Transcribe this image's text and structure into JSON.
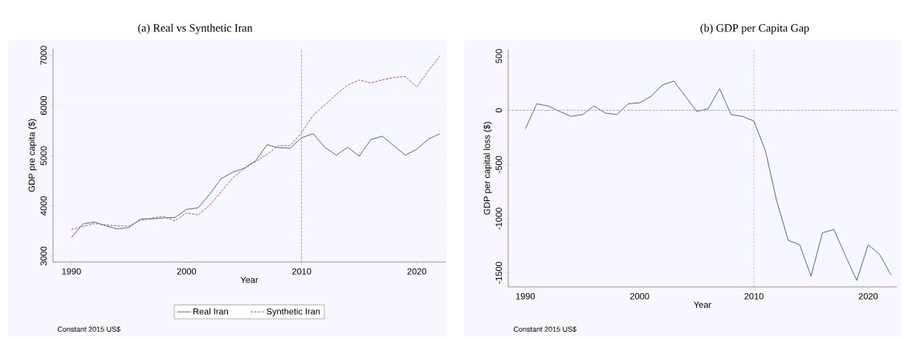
{
  "chart_data": [
    {
      "type": "line",
      "title": "(a) Real vs Synthetic Iran",
      "xlabel": "Year",
      "ylabel": "GDP pre capita ($)",
      "x": [
        1990,
        1991,
        1992,
        1993,
        1994,
        1995,
        1996,
        1997,
        1998,
        1999,
        2000,
        2001,
        2002,
        2003,
        2004,
        2005,
        2006,
        2007,
        2008,
        2009,
        2010,
        2011,
        2012,
        2013,
        2014,
        2015,
        2016,
        2017,
        2018,
        2019,
        2020,
        2021,
        2022
      ],
      "series": [
        {
          "name": "Real Iran",
          "color": "#4a6272",
          "line_style": "solid",
          "values": [
            3370,
            3640,
            3680,
            3600,
            3540,
            3570,
            3740,
            3740,
            3760,
            3770,
            3930,
            3960,
            4230,
            4540,
            4670,
            4750,
            4900,
            5220,
            5160,
            5150,
            5360,
            5440,
            5170,
            5010,
            5170,
            4990,
            5320,
            5390,
            5200,
            5010,
            5130,
            5330,
            5440
          ]
        },
        {
          "name": "Synthetic Iran",
          "color": "#b05050",
          "line_style": "dashed",
          "values": [
            3530,
            3590,
            3650,
            3620,
            3600,
            3600,
            3710,
            3760,
            3790,
            3700,
            3860,
            3820,
            4010,
            4280,
            4560,
            4740,
            4880,
            5030,
            5200,
            5200,
            5460,
            5810,
            6010,
            6220,
            6410,
            6510,
            6450,
            6510,
            6560,
            6580,
            6370,
            6690,
            6990
          ]
        }
      ],
      "xlim": [
        1988.4,
        2022.5
      ],
      "xticks": [
        1990,
        2000,
        2010,
        2020
      ],
      "ylim": [
        2880,
        7130
      ],
      "yticks": [
        3000,
        4000,
        5000,
        6000,
        7000
      ],
      "grid": "y",
      "legend": "bottom",
      "marker": "none",
      "ref_lines": [
        {
          "axis": "x",
          "value": 2010,
          "color": "#c07080",
          "line_style": "dashed"
        }
      ],
      "annotations": [
        "Constant 2015 US$"
      ]
    },
    {
      "type": "line",
      "title": "(b) GDP per Capita Gap",
      "xlabel": "Year",
      "ylabel": "GDP per capital loss ($)",
      "x": [
        1990,
        1991,
        1992,
        1993,
        1994,
        1995,
        1996,
        1997,
        1998,
        1999,
        2000,
        2001,
        2002,
        2003,
        2004,
        2005,
        2006,
        2007,
        2008,
        2009,
        2010,
        2011,
        2012,
        2013,
        2014,
        2015,
        2016,
        2017,
        2018,
        2019,
        2020,
        2021,
        2022
      ],
      "series": [
        {
          "color": "#4a6272",
          "line_style": "solid",
          "values": [
            -170,
            60,
            40,
            -10,
            -55,
            -40,
            40,
            -25,
            -40,
            60,
            70,
            130,
            235,
            270,
            130,
            -10,
            15,
            200,
            -40,
            -55,
            -100,
            -370,
            -840,
            -1200,
            -1240,
            -1530,
            -1130,
            -1100,
            -1340,
            -1570,
            -1240,
            -1330,
            -1520
          ]
        }
      ],
      "xlim": [
        1988.5,
        2022.5
      ],
      "xticks": [
        1990,
        2000,
        2010,
        2020
      ],
      "ylim": [
        -1630,
        560
      ],
      "yticks": [
        -1500,
        -1000,
        -500,
        0,
        500
      ],
      "grid": "y",
      "legend": false,
      "marker": "none",
      "ref_lines": [
        {
          "axis": "x",
          "value": 2010,
          "color": "#c07080",
          "line_style": "dashed"
        },
        {
          "axis": "y",
          "value": 0,
          "color": "#b89070",
          "line_style": "dashed"
        }
      ],
      "annotations": [
        "Constant 2015 US$"
      ]
    }
  ]
}
